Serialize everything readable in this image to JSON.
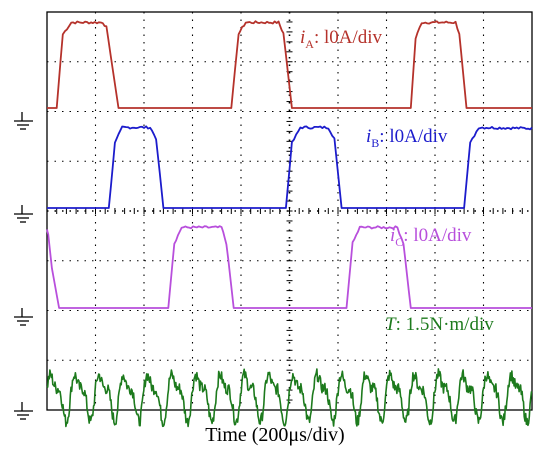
{
  "chart_data": {
    "type": "line",
    "xlabel": "Time (200μs/div)",
    "time_per_div_us": 200,
    "x_divisions": 10,
    "y_divisions": 8,
    "grid": true,
    "ground_markers": 4,
    "series": [
      {
        "name": "iA",
        "color": "#b5322b",
        "label_main": "i",
        "label_sub": "A",
        "label_scale": ": l0A/div",
        "points": [
          [
            0,
            0
          ],
          [
            40,
            0
          ],
          [
            65,
            1.48
          ],
          [
            100,
            1.72
          ],
          [
            230,
            1.72
          ],
          [
            245,
            1.62
          ],
          [
            295,
            0
          ],
          [
            760,
            0
          ],
          [
            790,
            1.5
          ],
          [
            820,
            1.72
          ],
          [
            955,
            1.72
          ],
          [
            975,
            1.5
          ],
          [
            1010,
            0
          ],
          [
            1500,
            0
          ],
          [
            1520,
            1.4
          ],
          [
            1545,
            1.72
          ],
          [
            1685,
            1.72
          ],
          [
            1700,
            1.5
          ],
          [
            1730,
            0
          ],
          [
            2000,
            0
          ]
        ]
      },
      {
        "name": "iB",
        "color": "#1c1ccc",
        "label_main": "i",
        "label_sub": "B",
        "label_scale": ": l0A/div",
        "points": [
          [
            0,
            0
          ],
          [
            255,
            0
          ],
          [
            280,
            1.3
          ],
          [
            310,
            1.62
          ],
          [
            425,
            1.62
          ],
          [
            450,
            1.4
          ],
          [
            480,
            0
          ],
          [
            985,
            0
          ],
          [
            1010,
            1.3
          ],
          [
            1045,
            1.62
          ],
          [
            1160,
            1.62
          ],
          [
            1185,
            1.4
          ],
          [
            1215,
            0
          ],
          [
            1720,
            0
          ],
          [
            1745,
            1.3
          ],
          [
            1780,
            1.62
          ],
          [
            2000,
            1.6
          ]
        ]
      },
      {
        "name": "iC",
        "color": "#b84fdc",
        "label_main": "i",
        "label_sub": "C",
        "label_scale": ": l0A/div",
        "points": [
          [
            0,
            1.6
          ],
          [
            5,
            1.5
          ],
          [
            20,
            0.8
          ],
          [
            50,
            0
          ],
          [
            500,
            0
          ],
          [
            525,
            1.3
          ],
          [
            555,
            1.62
          ],
          [
            720,
            1.62
          ],
          [
            740,
            1.3
          ],
          [
            770,
            0
          ],
          [
            1235,
            0
          ],
          [
            1260,
            1.3
          ],
          [
            1290,
            1.62
          ],
          [
            1445,
            1.62
          ],
          [
            1470,
            1.3
          ],
          [
            1500,
            0
          ],
          [
            2000,
            0
          ]
        ]
      },
      {
        "name": "T",
        "color": "#1d7a1d",
        "label_main": "T",
        "label_sub": "",
        "label_scale": ": 1.5N·m/div",
        "baseline": 2.6,
        "amplitude": 0.7,
        "period_us": 100
      }
    ]
  }
}
